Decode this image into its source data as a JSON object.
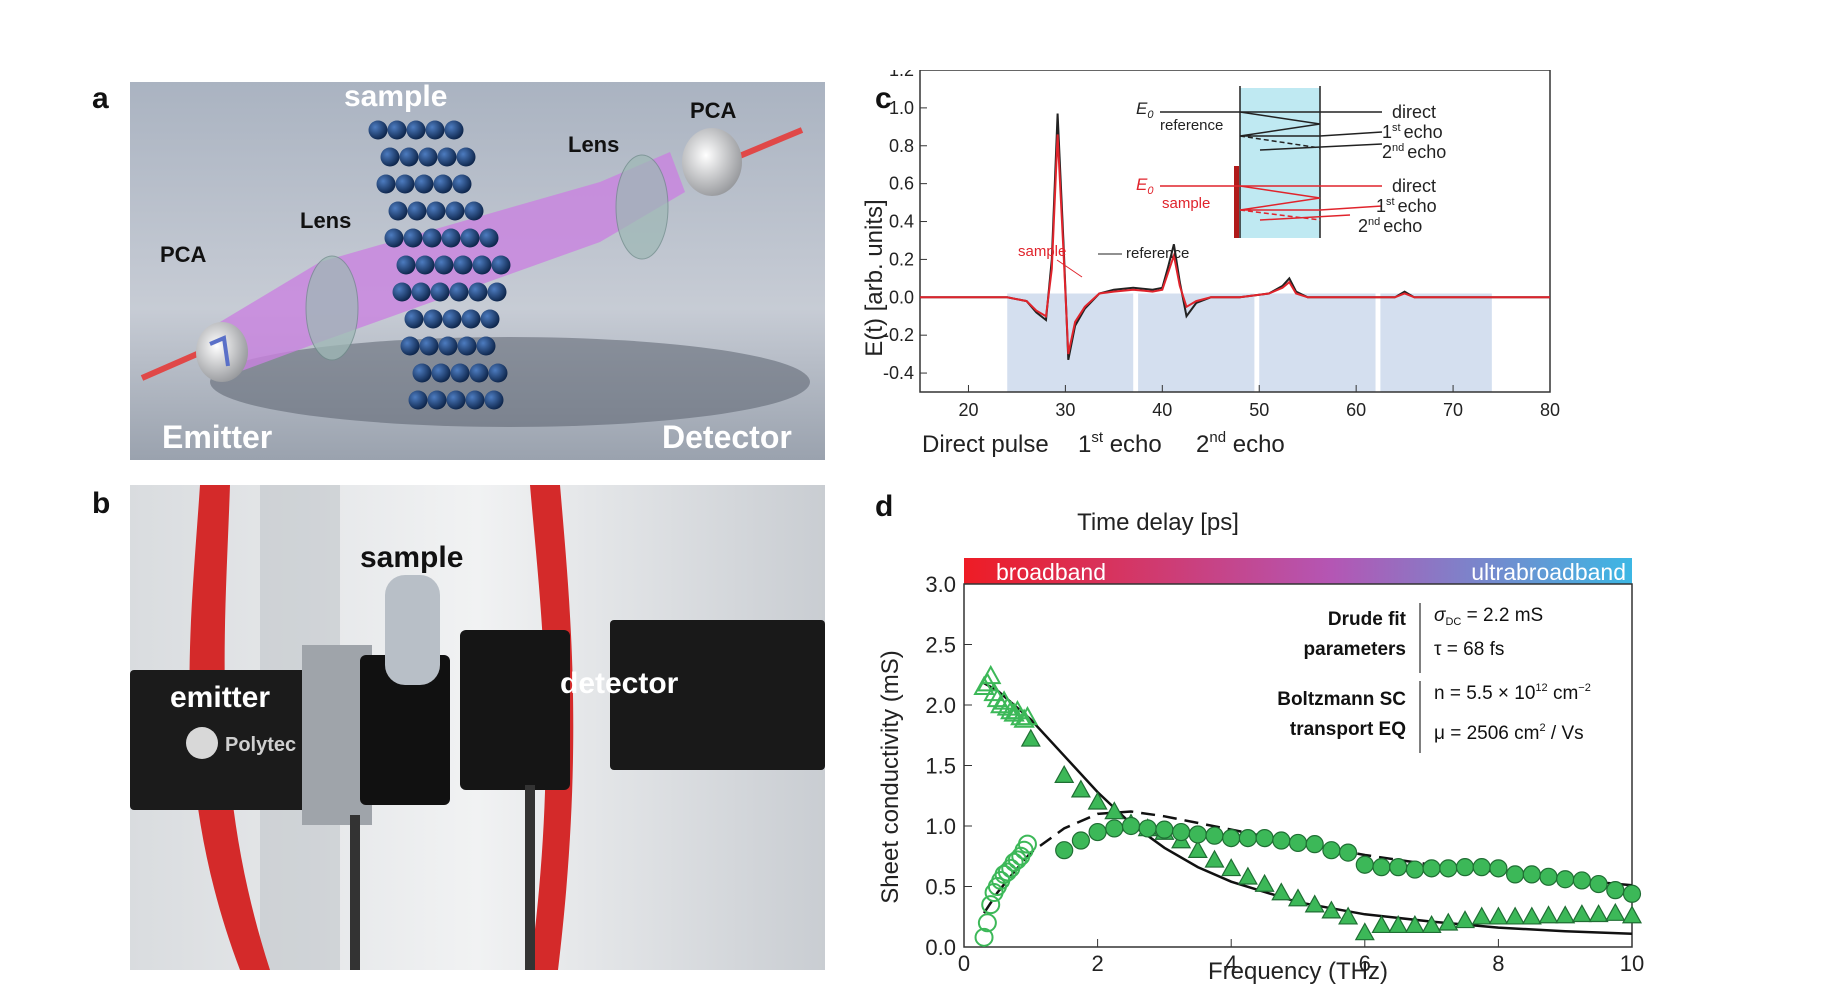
{
  "panels": {
    "a": {
      "letter": "a",
      "labels": {
        "sample": "sample",
        "pca_left": "PCA",
        "pca_right": "PCA",
        "lens_left": "Lens",
        "lens_right": "Lens",
        "emitter": "Emitter",
        "detector": "Detector"
      }
    },
    "b": {
      "letter": "b",
      "labels": {
        "sample": "sample",
        "emitter": "emitter",
        "detector": "detector",
        "brand": "Polytec"
      }
    },
    "c": {
      "letter": "c",
      "inset": {
        "e0_reference": "E",
        "e0_sub": "0",
        "reference": "reference",
        "direct": "direct",
        "echo1_num": "1",
        "echo1_sup": "st",
        "echo1_word": "echo",
        "echo2_num": "2",
        "echo2_sup": "nd",
        "echo2_word": "echo",
        "sample": "sample"
      },
      "annotations": {
        "sample": "sample",
        "reference": "reference",
        "direct_pulse": "Direct pulse",
        "first_echo_num": "1",
        "first_echo_sup": "st",
        "first_echo_word": " echo",
        "second_echo_num": "2",
        "second_echo_sup": "nd",
        "second_echo_word": " echo"
      }
    },
    "d": {
      "letter": "d",
      "band_left": "broadband",
      "band_right": "ultrabroadband",
      "drude_title_1": "Drude fit",
      "drude_title_2": "parameters",
      "sigma_symbol": "σ",
      "sigma_sub": "DC",
      "sigma_value": " = 2.2 mS",
      "tau_text": "τ = 68 fs",
      "boltz_title_1": "Boltzmann SC",
      "boltz_title_2": "transport EQ",
      "n_text": "n = 5.5 × 10",
      "n_exp": "12",
      "n_unit": " cm",
      "n_unit_exp": "−2",
      "mu_text": "μ = 2506 cm",
      "mu_exp": "2",
      "mu_unit": " / Vs"
    }
  },
  "colors": {
    "reference": "#222222",
    "sample": "#e0242c",
    "marker_fill": "#3cb858",
    "marker_edge": "#1f6e33",
    "band_start": "#ee1c25",
    "band_end": "#3cb7e4",
    "shade": "#c6d4ea",
    "beam": "#c982e0",
    "sphere": "#173a6e"
  },
  "chart_data": [
    {
      "type": "line",
      "xlabel": "Time delay [ps]",
      "ylabel": "E(t) [arb. units]",
      "xlim": [
        15,
        80
      ],
      "ylim": [
        -0.5,
        1.2
      ],
      "xticks": [
        20,
        30,
        40,
        50,
        60,
        70,
        80
      ],
      "yticks": [
        -0.4,
        -0.2,
        0.0,
        0.2,
        0.4,
        0.6,
        0.8,
        1.0,
        1.2
      ],
      "shaded_windows": [
        [
          24,
          37
        ],
        [
          37.5,
          49.5
        ],
        [
          50,
          62
        ],
        [
          62.5,
          74
        ]
      ],
      "series": [
        {
          "name": "reference",
          "x": [
            15,
            20,
            24,
            26,
            27,
            28,
            28.6,
            29.2,
            29.8,
            30.3,
            31,
            32,
            33.5,
            35,
            37,
            39,
            40,
            40.6,
            41.2,
            41.8,
            42.5,
            43.5,
            45,
            48,
            51,
            52.4,
            53.1,
            53.8,
            55,
            60,
            64,
            65,
            66,
            70,
            75,
            80
          ],
          "values": [
            0.0,
            0.0,
            0.0,
            -0.02,
            -0.08,
            -0.12,
            0.2,
            0.97,
            0.3,
            -0.33,
            -0.15,
            -0.06,
            0.02,
            0.04,
            0.05,
            0.04,
            0.05,
            0.16,
            0.28,
            0.08,
            -0.1,
            -0.03,
            0.0,
            0.0,
            0.02,
            0.06,
            0.1,
            0.03,
            0.0,
            0.0,
            0.0,
            0.03,
            0.0,
            0.0,
            0.0,
            0.0
          ]
        },
        {
          "name": "sample",
          "x": [
            15,
            20,
            24,
            26,
            27,
            28,
            28.6,
            29.2,
            29.8,
            30.3,
            31,
            32,
            33.5,
            35,
            37,
            39,
            40,
            40.6,
            41.2,
            41.8,
            42.5,
            43.5,
            45,
            48,
            51,
            52.4,
            53.1,
            53.8,
            55,
            60,
            64,
            65,
            66,
            70,
            75,
            80
          ],
          "values": [
            0.0,
            0.0,
            0.0,
            -0.02,
            -0.07,
            -0.1,
            0.15,
            0.86,
            0.25,
            -0.3,
            -0.13,
            -0.05,
            0.02,
            0.03,
            0.04,
            0.03,
            0.04,
            0.13,
            0.22,
            0.06,
            -0.05,
            -0.02,
            0.0,
            0.0,
            0.02,
            0.05,
            0.08,
            0.02,
            0.0,
            0.0,
            0.0,
            0.02,
            0.0,
            0.0,
            0.0,
            0.0
          ]
        }
      ]
    },
    {
      "type": "scatter",
      "xlabel": "Frequency (THz)",
      "ylabel": "Sheet conductivity (mS)",
      "xlim": [
        0,
        10
      ],
      "ylim": [
        0,
        3.0
      ],
      "xticks": [
        0,
        2,
        4,
        6,
        8,
        10
      ],
      "yticks": [
        0.0,
        0.5,
        1.0,
        1.5,
        2.0,
        2.5,
        3.0
      ],
      "series": [
        {
          "name": "real_broadband",
          "marker": "triangle-open",
          "x": [
            0.3,
            0.35,
            0.4,
            0.45,
            0.5,
            0.55,
            0.6,
            0.65,
            0.7,
            0.75,
            0.8,
            0.85,
            0.9,
            0.95
          ],
          "values": [
            2.15,
            2.18,
            2.24,
            2.1,
            2.05,
            2.0,
            2.03,
            1.98,
            1.95,
            1.93,
            1.95,
            1.9,
            1.88,
            1.9
          ]
        },
        {
          "name": "real_ultrabroadband",
          "marker": "triangle-filled",
          "x": [
            1.0,
            1.5,
            1.75,
            2.0,
            2.25,
            2.5,
            2.75,
            3.0,
            3.25,
            3.5,
            3.75,
            4.0,
            4.25,
            4.5,
            4.75,
            5.0,
            5.25,
            5.5,
            5.75,
            6.0,
            6.25,
            6.5,
            6.75,
            7.0,
            7.25,
            7.5,
            7.75,
            8.0,
            8.25,
            8.5,
            8.75,
            9.0,
            9.25,
            9.5,
            9.75,
            10.0
          ],
          "values": [
            1.72,
            1.42,
            1.3,
            1.2,
            1.12,
            1.02,
            0.98,
            0.95,
            0.88,
            0.8,
            0.72,
            0.65,
            0.58,
            0.52,
            0.45,
            0.4,
            0.35,
            0.3,
            0.25,
            0.12,
            0.18,
            0.18,
            0.18,
            0.18,
            0.2,
            0.22,
            0.25,
            0.25,
            0.25,
            0.25,
            0.26,
            0.26,
            0.27,
            0.27,
            0.28,
            0.26
          ]
        },
        {
          "name": "imag_broadband",
          "marker": "circle-open",
          "x": [
            0.3,
            0.35,
            0.4,
            0.45,
            0.5,
            0.55,
            0.6,
            0.65,
            0.7,
            0.75,
            0.8,
            0.85,
            0.9,
            0.95
          ],
          "values": [
            0.08,
            0.2,
            0.35,
            0.45,
            0.5,
            0.55,
            0.6,
            0.62,
            0.65,
            0.7,
            0.72,
            0.75,
            0.8,
            0.85
          ]
        },
        {
          "name": "imag_ultrabroadband",
          "marker": "circle-filled",
          "x": [
            1.5,
            1.75,
            2.0,
            2.25,
            2.5,
            2.75,
            3.0,
            3.25,
            3.5,
            3.75,
            4.0,
            4.25,
            4.5,
            4.75,
            5.0,
            5.25,
            5.5,
            5.75,
            6.0,
            6.25,
            6.5,
            6.75,
            7.0,
            7.25,
            7.5,
            7.75,
            8.0,
            8.25,
            8.5,
            8.75,
            9.0,
            9.25,
            9.5,
            9.75,
            10.0
          ],
          "values": [
            0.8,
            0.88,
            0.95,
            0.98,
            1.0,
            0.98,
            0.97,
            0.95,
            0.93,
            0.92,
            0.9,
            0.9,
            0.9,
            0.88,
            0.86,
            0.85,
            0.8,
            0.78,
            0.68,
            0.66,
            0.66,
            0.64,
            0.65,
            0.65,
            0.66,
            0.66,
            0.65,
            0.6,
            0.6,
            0.58,
            0.56,
            0.55,
            0.52,
            0.47,
            0.44
          ]
        }
      ],
      "fits": [
        {
          "name": "drude_real",
          "style": "solid",
          "x": [
            0.3,
            0.5,
            1.0,
            1.5,
            2.0,
            2.5,
            3.0,
            3.5,
            4.0,
            5.0,
            6.0,
            7.0,
            8.0,
            9.0,
            10.0
          ],
          "values": [
            2.18,
            2.12,
            1.88,
            1.58,
            1.28,
            1.02,
            0.82,
            0.66,
            0.54,
            0.37,
            0.27,
            0.21,
            0.16,
            0.13,
            0.11
          ]
        },
        {
          "name": "drude_imag",
          "style": "dashed",
          "x": [
            0.3,
            0.5,
            0.75,
            1.0,
            1.5,
            2.0,
            2.5,
            3.0,
            4.0,
            5.0,
            6.0,
            7.0,
            8.0,
            9.0,
            10.0
          ],
          "values": [
            0.28,
            0.45,
            0.62,
            0.78,
            0.98,
            1.1,
            1.12,
            1.08,
            0.97,
            0.86,
            0.76,
            0.68,
            0.62,
            0.56,
            0.51
          ]
        }
      ]
    }
  ]
}
